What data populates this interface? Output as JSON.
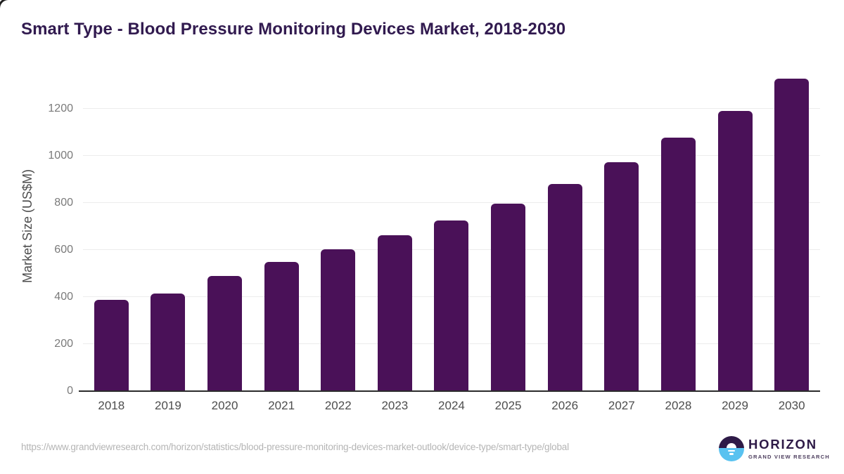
{
  "page": {
    "title": "Smart Type - Blood Pressure Monitoring Devices Market, 2018-2030"
  },
  "chart_data": {
    "type": "bar",
    "title": "Smart Type - Blood Pressure Monitoring Devices Market, 2018-2030",
    "categories": [
      "2018",
      "2019",
      "2020",
      "2021",
      "2022",
      "2023",
      "2024",
      "2025",
      "2026",
      "2027",
      "2028",
      "2029",
      "2030"
    ],
    "values": [
      389,
      416,
      490,
      551,
      602,
      663,
      727,
      798,
      880,
      973,
      1078,
      1193,
      1330
    ],
    "xlabel": "",
    "ylabel": "Market Size (US$M)",
    "ylim": [
      0,
      1365
    ],
    "yticks": [
      0,
      200,
      400,
      600,
      800,
      1000,
      1200
    ],
    "grid": true,
    "legend_position": "none",
    "bar_color": "#4a1158"
  },
  "footer": {
    "source_url": "https://www.grandviewresearch.com/horizon/statistics/blood-pressure-monitoring-devices-market-outlook/device-type/smart-type/global",
    "brand": {
      "name": "HORIZON",
      "tagline": "GRAND VIEW RESEARCH"
    }
  },
  "colors": {
    "bar": "#4a1158",
    "title_text": "#311a4f",
    "axis_label_text": "#4d4d4d",
    "tick_text": "#7a7a7a",
    "gridline": "#ececec",
    "baseline": "#2b2b2b",
    "footer_text": "#b5b5b5",
    "brand_purple": "#2e1a47",
    "brand_blue": "#59c2f0"
  }
}
